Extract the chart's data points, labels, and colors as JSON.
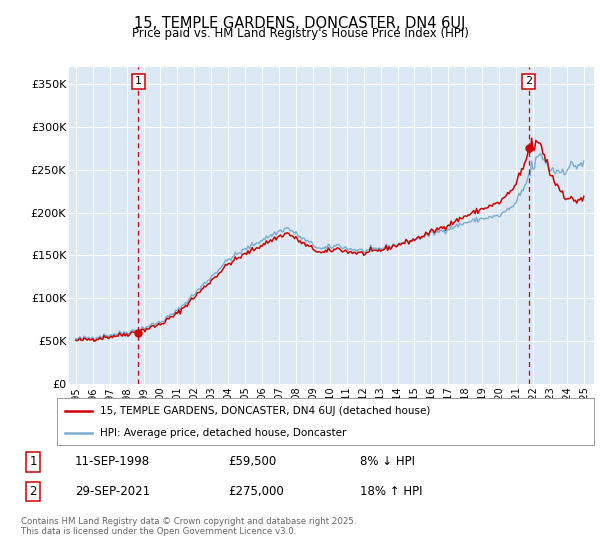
{
  "title": "15, TEMPLE GARDENS, DONCASTER, DN4 6UJ",
  "subtitle": "Price paid vs. HM Land Registry's House Price Index (HPI)",
  "bg_color": "#dce9f5",
  "grid_color": "#ffffff",
  "red_line_color": "#cc0000",
  "blue_line_color": "#7aadcf",
  "purchase1": {
    "date_num": 1998.7,
    "price": 59500,
    "label": "1",
    "pct": "8% ↓ HPI",
    "date_str": "11-SEP-1998"
  },
  "purchase2": {
    "date_num": 2021.75,
    "price": 275000,
    "label": "2",
    "pct": "18% ↑ HPI",
    "date_str": "29-SEP-2021"
  },
  "ylim": [
    0,
    370000
  ],
  "xlim_start": 1994.6,
  "xlim_end": 2025.6,
  "legend_line1": "15, TEMPLE GARDENS, DONCASTER, DN4 6UJ (detached house)",
  "legend_line2": "HPI: Average price, detached house, Doncaster",
  "footnote": "Contains HM Land Registry data © Crown copyright and database right 2025.\nThis data is licensed under the Open Government Licence v3.0.",
  "yticks": [
    0,
    50000,
    100000,
    150000,
    200000,
    250000,
    300000,
    350000
  ],
  "ytick_labels": [
    "£0",
    "£50K",
    "£100K",
    "£150K",
    "£200K",
    "£250K",
    "£300K",
    "£350K"
  ],
  "xticks": [
    1995,
    1996,
    1997,
    1998,
    1999,
    2000,
    2001,
    2002,
    2003,
    2004,
    2005,
    2006,
    2007,
    2008,
    2009,
    2010,
    2011,
    2012,
    2013,
    2014,
    2015,
    2016,
    2017,
    2018,
    2019,
    2020,
    2021,
    2022,
    2023,
    2024,
    2025
  ]
}
